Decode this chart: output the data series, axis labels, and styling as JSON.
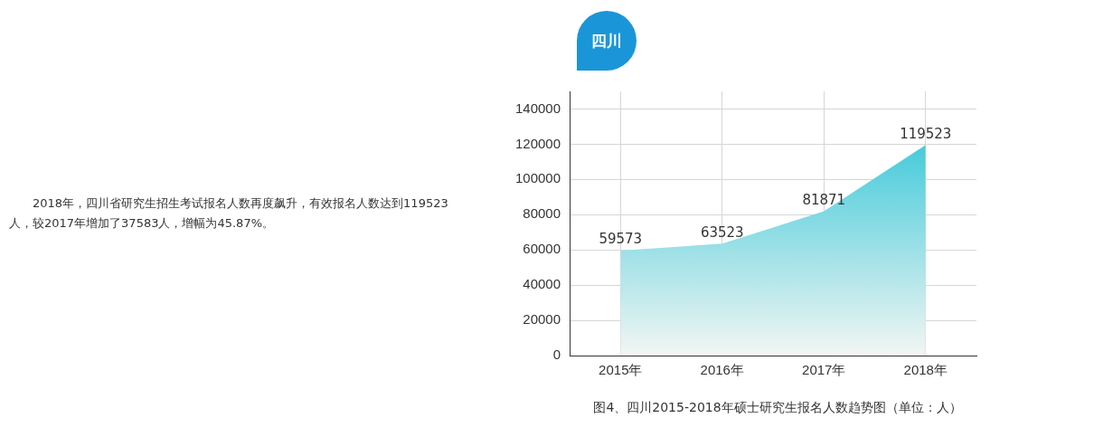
{
  "chart_data": {
    "type": "area",
    "title": "四川",
    "categories": [
      "2015年",
      "2016年",
      "2017年",
      "2018年"
    ],
    "values": [
      59573,
      63523,
      81871,
      119523
    ],
    "color": "#1bc0d4",
    "ylim": [
      0,
      150000
    ],
    "yticks": [
      0,
      20000,
      40000,
      60000,
      80000,
      100000,
      120000,
      140000
    ],
    "grid": true,
    "data_labels": true,
    "annotations": [
      "图4、四川2015-2018年硕士研究生报名人数趋势图（单位：人）",
      "2018年，四川省研究生招生考试报名人数再度飙升，有效报名人数达到119523人，较2017年增加了37583人，增幅为45.87%。"
    ]
  }
}
